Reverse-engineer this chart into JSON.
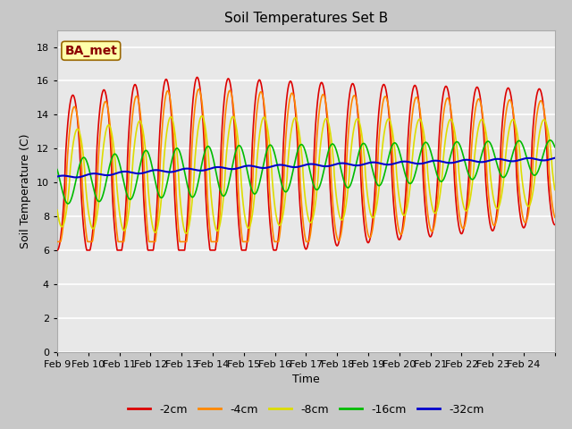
{
  "title": "Soil Temperatures Set B",
  "xlabel": "Time",
  "ylabel": "Soil Temperature (C)",
  "annotation": "BA_met",
  "ylim": [
    0,
    19
  ],
  "yticks": [
    0,
    2,
    4,
    6,
    8,
    10,
    12,
    14,
    16,
    18
  ],
  "xtick_labels": [
    "Feb 9",
    "Feb 10",
    "Feb 11",
    "Feb 12",
    "Feb 13",
    "Feb 14",
    "Feb 15",
    "Feb 16",
    "Feb 17",
    "Feb 18",
    "Feb 19",
    "Feb 20",
    "Feb 21",
    "Feb 22",
    "Feb 23",
    "Feb 24"
  ],
  "n_days": 16,
  "series": [
    {
      "label": "-2cm",
      "color": "#dd0000",
      "lw": 1.2
    },
    {
      "label": "-4cm",
      "color": "#ff8800",
      "lw": 1.2
    },
    {
      "label": "-8cm",
      "color": "#dddd00",
      "lw": 1.2
    },
    {
      "label": "-16cm",
      "color": "#00bb00",
      "lw": 1.2
    },
    {
      "label": "-32cm",
      "color": "#0000cc",
      "lw": 1.5
    }
  ],
  "fig_bg": "#c8c8c8",
  "plot_bg": "#e8e8e8",
  "title_fontsize": 11,
  "label_fontsize": 9,
  "tick_fontsize": 8,
  "legend_fontsize": 9
}
